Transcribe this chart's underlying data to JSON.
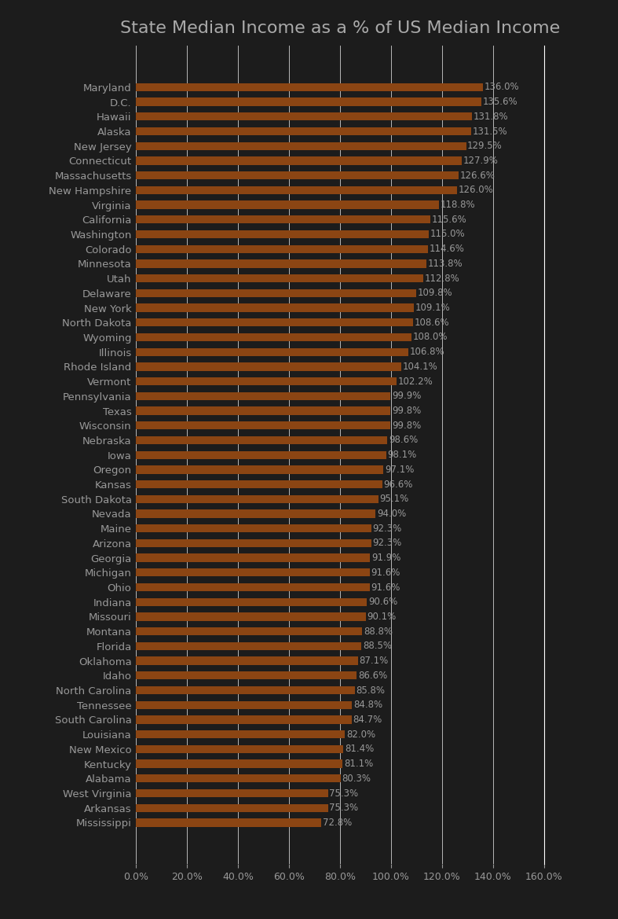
{
  "title": "State Median Income as a % of US Median Income",
  "background_color": "#1c1c1c",
  "bar_color": "#8B4513",
  "text_color": "#999999",
  "title_color": "#aaaaaa",
  "states": [
    "Maryland",
    "D.C.",
    "Hawaii",
    "Alaska",
    "New Jersey",
    "Connecticut",
    "Massachusetts",
    "New Hampshire",
    "Virginia",
    "California",
    "Washington",
    "Colorado",
    "Minnesota",
    "Utah",
    "Delaware",
    "New York",
    "North Dakota",
    "Wyoming",
    "Illinois",
    "Rhode Island",
    "Vermont",
    "Pennsylvania",
    "Texas",
    "Wisconsin",
    "Nebraska",
    "Iowa",
    "Oregon",
    "Kansas",
    "South Dakota",
    "Nevada",
    "Maine",
    "Arizona",
    "Georgia",
    "Michigan",
    "Ohio",
    "Indiana",
    "Missouri",
    "Montana",
    "Florida",
    "Oklahoma",
    "Idaho",
    "North Carolina",
    "Tennessee",
    "South Carolina",
    "Louisiana",
    "New Mexico",
    "Kentucky",
    "Alabama",
    "West Virginia",
    "Arkansas",
    "Mississippi"
  ],
  "values": [
    136.0,
    135.6,
    131.8,
    131.5,
    129.5,
    127.9,
    126.6,
    126.0,
    118.8,
    115.6,
    115.0,
    114.6,
    113.8,
    112.8,
    109.8,
    109.1,
    108.6,
    108.0,
    106.8,
    104.1,
    102.2,
    99.9,
    99.8,
    99.8,
    98.6,
    98.1,
    97.1,
    96.6,
    95.1,
    94.0,
    92.3,
    92.3,
    91.9,
    91.6,
    91.6,
    90.6,
    90.1,
    88.8,
    88.5,
    87.1,
    86.6,
    85.8,
    84.8,
    84.7,
    82.0,
    81.4,
    81.1,
    80.3,
    75.3,
    75.3,
    72.8
  ],
  "xlim": [
    0,
    160
  ],
  "xticks": [
    0,
    20,
    40,
    60,
    80,
    100,
    120,
    140,
    160
  ],
  "grid_color": "#ffffff",
  "title_fontsize": 16,
  "label_fontsize": 9.5,
  "value_fontsize": 8.5,
  "tick_fontsize": 9
}
